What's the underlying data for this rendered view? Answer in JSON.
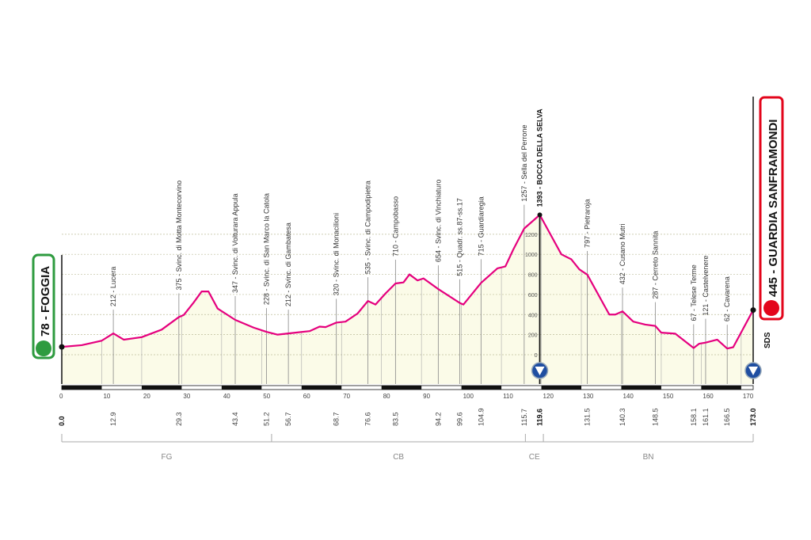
{
  "chart_data": {
    "type": "area",
    "xlim": [
      0,
      173.0
    ],
    "ylim": [
      0,
      1400
    ],
    "x_ticks": [
      0,
      10,
      20,
      30,
      40,
      50,
      60,
      70,
      80,
      90,
      100,
      110,
      120,
      130,
      140,
      150,
      160,
      170
    ],
    "y_ticks": [
      0,
      200,
      400,
      600,
      800,
      1000,
      1200
    ],
    "grid": true,
    "colors": {
      "line": "#e5007e",
      "fill": "#fbfbe8",
      "start": "#2e9b3f",
      "finish": "#e3051b",
      "kom": "#1f4ea1"
    },
    "start": {
      "km": 0.0,
      "elevation": 78,
      "name": "FOGGIA",
      "label": "78 - FOGGIA",
      "km_label": "0.0",
      "icon": "bicycle-icon"
    },
    "finish": {
      "km": 173.0,
      "elevation": 445,
      "name": "GUARDIA SANFRAMONDI",
      "label": "445 - GUARDIA SANFRAMONDI",
      "km_label": "173.0",
      "icon": "finish-bicycle-icon",
      "note": "SDS"
    },
    "profile": [
      [
        0,
        78
      ],
      [
        5,
        95
      ],
      [
        10,
        140
      ],
      [
        12.9,
        212
      ],
      [
        15.5,
        150
      ],
      [
        20,
        175
      ],
      [
        25,
        250
      ],
      [
        29.3,
        375
      ],
      [
        30.5,
        395
      ],
      [
        33,
        520
      ],
      [
        35,
        630
      ],
      [
        36.7,
        630
      ],
      [
        39,
        460
      ],
      [
        43.4,
        347
      ],
      [
        48,
        270
      ],
      [
        51.2,
        228
      ],
      [
        54,
        200
      ],
      [
        56.7,
        212
      ],
      [
        62,
        235
      ],
      [
        64.5,
        280
      ],
      [
        66,
        275
      ],
      [
        67.5,
        300
      ],
      [
        68.7,
        320
      ],
      [
        71,
        330
      ],
      [
        74,
        410
      ],
      [
        76.6,
        535
      ],
      [
        78.5,
        500
      ],
      [
        81,
        610
      ],
      [
        83.5,
        710
      ],
      [
        85.5,
        720
      ],
      [
        87,
        800
      ],
      [
        89,
        740
      ],
      [
        90.5,
        760
      ],
      [
        94.2,
        654
      ],
      [
        99.6,
        515
      ],
      [
        100.5,
        500
      ],
      [
        104.9,
        715
      ],
      [
        109,
        860
      ],
      [
        111,
        880
      ],
      [
        113,
        1050
      ],
      [
        115.7,
        1257
      ],
      [
        119.6,
        1393
      ],
      [
        125,
        1000
      ],
      [
        127.5,
        950
      ],
      [
        129.5,
        850
      ],
      [
        131.5,
        797
      ],
      [
        137,
        400
      ],
      [
        138.5,
        400
      ],
      [
        140.3,
        432
      ],
      [
        143,
        330
      ],
      [
        146,
        300
      ],
      [
        148.5,
        287
      ],
      [
        150,
        220
      ],
      [
        153.5,
        210
      ],
      [
        158.1,
        67
      ],
      [
        159.5,
        110
      ],
      [
        161.1,
        121
      ],
      [
        164,
        150
      ],
      [
        166.5,
        62
      ],
      [
        168,
        75
      ],
      [
        173,
        445
      ]
    ],
    "waypoints": [
      {
        "km": 12.9,
        "km_label": "12.9",
        "label": "212 - Lucera"
      },
      {
        "km": 29.3,
        "km_label": "29.3",
        "label": "375 - Svinc. di Motta Montecorvino"
      },
      {
        "km": 43.4,
        "km_label": "43.4",
        "label": "347 - Svinc. di Volturara Appula"
      },
      {
        "km": 51.2,
        "km_label": "51.2",
        "label": "228 - Svinc. di San Marco la Catola"
      },
      {
        "km": 56.7,
        "km_label": "56.7",
        "label": "212 - Svinc. di Gambatesa"
      },
      {
        "km": 68.7,
        "km_label": "68.7",
        "label": "320 - Svinc. di Monacilioni"
      },
      {
        "km": 76.6,
        "km_label": "76.6",
        "label": "535 - Svinc. di Campodipietra"
      },
      {
        "km": 83.5,
        "km_label": "83.5",
        "label": "710 - Campobasso"
      },
      {
        "km": 94.2,
        "km_label": "94.2",
        "label": "654 - Svinc. di Vinchiaturo"
      },
      {
        "km": 99.6,
        "km_label": "99.6",
        "label": "515 - Quadr. ss.87-ss.17"
      },
      {
        "km": 104.9,
        "km_label": "104.9",
        "label": "715 - Guardiaregia"
      },
      {
        "km": 115.7,
        "km_label": "115.7",
        "label": "1257 - Sella del Perrone"
      },
      {
        "km": 119.6,
        "km_label": "119.6",
        "label": "1393 - BOCCA DELLA SELVA",
        "bold": true,
        "kom": true
      },
      {
        "km": 131.5,
        "km_label": "131.5",
        "label": "797 - Pietraroja"
      },
      {
        "km": 140.3,
        "km_label": "140.3",
        "label": "432 - Cusano Mutri"
      },
      {
        "km": 148.5,
        "km_label": "148.5",
        "label": "287 - Cerreto Sannita"
      },
      {
        "km": 158.1,
        "km_label": "158.1",
        "label": "67 - Telese Terme"
      },
      {
        "km": 161.1,
        "km_label": "161.1",
        "label": "121 - Castelvenere"
      },
      {
        "km": 166.5,
        "km_label": "166.5",
        "label": "62 - Cavarena"
      }
    ],
    "provinces": [
      {
        "label": "FG",
        "from": 0,
        "to": 52.5
      },
      {
        "label": "CB",
        "from": 52.5,
        "to": 116
      },
      {
        "label": "CE",
        "from": 116,
        "to": 120.5
      },
      {
        "label": "BN",
        "from": 120.5,
        "to": 173
      }
    ]
  }
}
